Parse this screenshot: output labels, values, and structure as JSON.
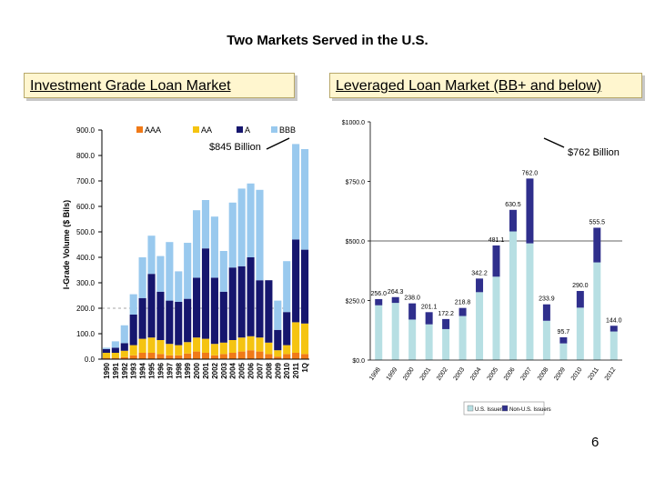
{
  "slide": {
    "title": "Two Markets Served in the U.S.",
    "left_header": "Investment Grade Loan Market",
    "right_header": "Leveraged Loan Market (BB+ and below)",
    "page_number": "6"
  },
  "chart_data": [
    {
      "type": "bar",
      "stacked": true,
      "title": "",
      "xlabel": "",
      "ylabel": "I-Grade Volume ($ Bils)",
      "ylim": [
        0,
        900
      ],
      "yticks": [
        "0.0",
        "100.0",
        "200.0",
        "300.0",
        "400.0",
        "500.0",
        "600.0",
        "700.0",
        "800.0",
        "900.0"
      ],
      "legend_position": "top-right",
      "annotation": "$845 Billion",
      "categories": [
        "1990",
        "1991",
        "1992",
        "1993",
        "1994",
        "1995",
        "1996",
        "1997",
        "1998",
        "1999",
        "2000",
        "2001",
        "2002",
        "2003",
        "2004",
        "2005",
        "2006",
        "2007",
        "2008",
        "2009",
        "2010",
        "2011",
        "1Q"
      ],
      "series": [
        {
          "name": "AAA",
          "color": "#f07a18",
          "values": [
            5,
            5,
            8,
            15,
            25,
            25,
            20,
            15,
            15,
            22,
            30,
            25,
            15,
            20,
            25,
            30,
            35,
            30,
            20,
            10,
            20,
            25,
            20
          ]
        },
        {
          "name": "AA",
          "color": "#f5c411",
          "values": [
            20,
            20,
            25,
            40,
            55,
            60,
            55,
            45,
            40,
            45,
            55,
            55,
            45,
            45,
            50,
            55,
            55,
            55,
            45,
            25,
            35,
            120,
            120
          ]
        },
        {
          "name": "A",
          "color": "#16166e",
          "values": [
            15,
            20,
            30,
            120,
            160,
            250,
            190,
            170,
            170,
            170,
            235,
            355,
            260,
            200,
            285,
            280,
            310,
            225,
            245,
            80,
            130,
            325,
            290
          ]
        },
        {
          "name": "BBB",
          "color": "#99c9ee",
          "values": [
            5,
            25,
            70,
            80,
            160,
            150,
            140,
            230,
            120,
            220,
            265,
            190,
            240,
            160,
            255,
            305,
            290,
            355,
            0,
            115,
            200,
            375,
            395
          ]
        }
      ]
    },
    {
      "type": "bar",
      "stacked": true,
      "title": "",
      "xlabel": "",
      "ylabel": "",
      "ylim": [
        0,
        1000
      ],
      "yticks": [
        "$0.0",
        "$250.0",
        "$500.0",
        "$750.0",
        "$1000.0"
      ],
      "legend_position": "bottom",
      "annotation": "$762 Billion",
      "categories": [
        "1998",
        "1999",
        "2000",
        "2001",
        "2002",
        "2003",
        "2004",
        "2005",
        "2006",
        "2007",
        "2008",
        "2009",
        "2010",
        "2011",
        "2012"
      ],
      "totals_labels": [
        "256.0",
        "264.3",
        "238.0",
        "201.1",
        "172.2",
        "218.8",
        "342.2",
        "481.1",
        "630.5",
        "762.0",
        "233.9",
        "95.7",
        "290.0",
        "555.5",
        "144.0"
      ],
      "series": [
        {
          "name": "U.S. Issuers",
          "color": "#b7dfe3",
          "values": [
            230,
            240,
            170,
            150,
            130,
            185,
            285,
            350,
            540,
            490,
            165,
            70,
            220,
            410,
            120
          ]
        },
        {
          "name": "Non-U.S. Issuers",
          "color": "#2f2f8c",
          "values": [
            26.0,
            24.3,
            68.0,
            51.1,
            42.2,
            33.8,
            57.2,
            131.1,
            90.5,
            272.0,
            68.9,
            25.7,
            70.0,
            145.5,
            24.0
          ]
        }
      ]
    }
  ]
}
